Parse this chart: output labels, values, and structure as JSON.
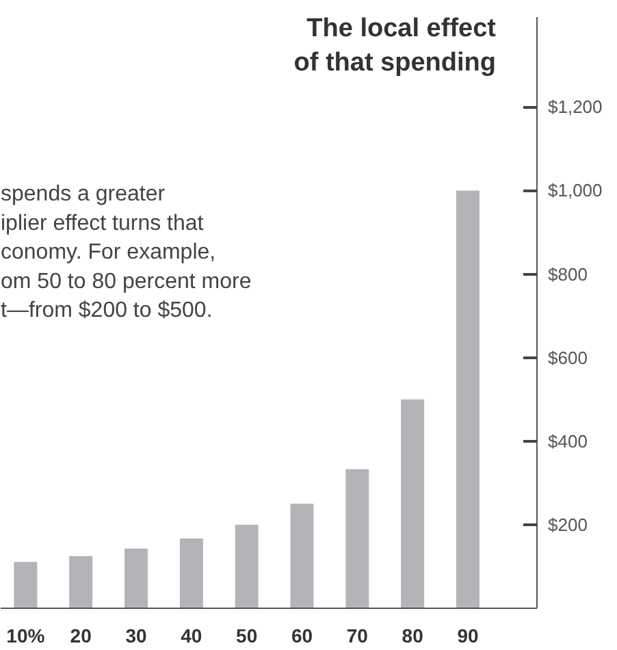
{
  "chart_data": {
    "type": "bar",
    "title": "The local effect\nof that spending",
    "categories": [
      "10%",
      "20",
      "30",
      "40",
      "50",
      "60",
      "70",
      "80",
      "90"
    ],
    "values": [
      111,
      125,
      143,
      167,
      200,
      250,
      333,
      500,
      1000
    ],
    "color": "#b3b4b7",
    "ylim": [
      0,
      1415
    ],
    "yticks": [
      {
        "value": 200,
        "label": "$200"
      },
      {
        "value": 400,
        "label": "$400"
      },
      {
        "value": 600,
        "label": "$600"
      },
      {
        "value": 800,
        "label": "$800"
      },
      {
        "value": 1000,
        "label": "$1,000"
      },
      {
        "value": 1200,
        "label": "$1,200"
      }
    ],
    "annotations": [
      "spends a greater\niplier effect turns that\nconomy. For example,\nom 50 to 80 percent more\nt—from $200 to $500."
    ],
    "grid": false
  }
}
